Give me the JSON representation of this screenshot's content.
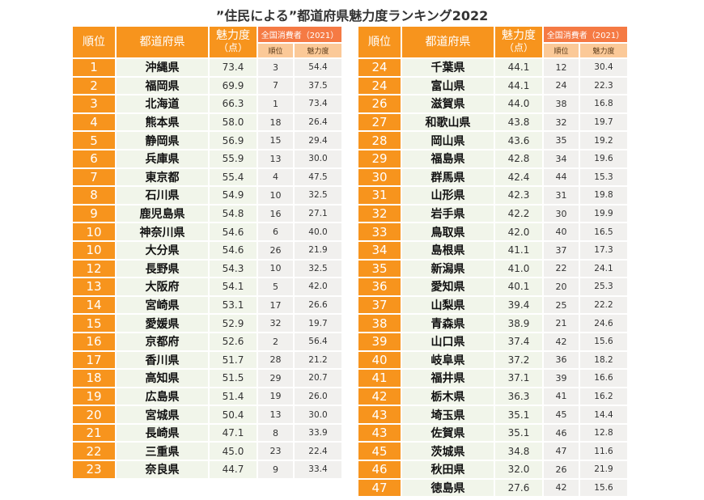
{
  "title": "”住民による”都道府県魅力度ランキング2022",
  "headers": {
    "rank": "順位",
    "prefecture": "都道府県",
    "score": "魅力度",
    "score_unit": "（点）",
    "group": "全国消費者（2021）",
    "sub_rank": "順位",
    "sub_score": "魅力度"
  },
  "colors": {
    "rank_bg": "#f7941d",
    "group_header_bg": "#f57a44",
    "sub_header_bg": "#fbc998",
    "row_bg": "#f1f5ea",
    "sub_row_bg": "#f1f0ee"
  },
  "left_rows": [
    {
      "rank": "1",
      "pref": "沖縄県",
      "score": "73.4",
      "r2021": "3",
      "s2021": "54.4"
    },
    {
      "rank": "2",
      "pref": "福岡県",
      "score": "69.9",
      "r2021": "7",
      "s2021": "37.5"
    },
    {
      "rank": "3",
      "pref": "北海道",
      "score": "66.3",
      "r2021": "1",
      "s2021": "73.4"
    },
    {
      "rank": "4",
      "pref": "熊本県",
      "score": "58.0",
      "r2021": "18",
      "s2021": "26.4"
    },
    {
      "rank": "5",
      "pref": "静岡県",
      "score": "56.9",
      "r2021": "15",
      "s2021": "29.4"
    },
    {
      "rank": "6",
      "pref": "兵庫県",
      "score": "55.9",
      "r2021": "13",
      "s2021": "30.0"
    },
    {
      "rank": "7",
      "pref": "東京都",
      "score": "55.4",
      "r2021": "4",
      "s2021": "47.5"
    },
    {
      "rank": "8",
      "pref": "石川県",
      "score": "54.9",
      "r2021": "10",
      "s2021": "32.5"
    },
    {
      "rank": "9",
      "pref": "鹿児島県",
      "score": "54.8",
      "r2021": "16",
      "s2021": "27.1"
    },
    {
      "rank": "10",
      "pref": "神奈川県",
      "score": "54.6",
      "r2021": "6",
      "s2021": "40.0"
    },
    {
      "rank": "10",
      "pref": "大分県",
      "score": "54.6",
      "r2021": "26",
      "s2021": "21.9"
    },
    {
      "rank": "12",
      "pref": "長野県",
      "score": "54.3",
      "r2021": "10",
      "s2021": "32.5"
    },
    {
      "rank": "13",
      "pref": "大阪府",
      "score": "54.1",
      "r2021": "5",
      "s2021": "42.0"
    },
    {
      "rank": "14",
      "pref": "宮崎県",
      "score": "53.1",
      "r2021": "17",
      "s2021": "26.6"
    },
    {
      "rank": "15",
      "pref": "愛媛県",
      "score": "52.9",
      "r2021": "32",
      "s2021": "19.7"
    },
    {
      "rank": "16",
      "pref": "京都府",
      "score": "52.6",
      "r2021": "2",
      "s2021": "56.4"
    },
    {
      "rank": "17",
      "pref": "香川県",
      "score": "51.7",
      "r2021": "28",
      "s2021": "21.2"
    },
    {
      "rank": "18",
      "pref": "高知県",
      "score": "51.5",
      "r2021": "29",
      "s2021": "20.7"
    },
    {
      "rank": "19",
      "pref": "広島県",
      "score": "51.4",
      "r2021": "19",
      "s2021": "26.0"
    },
    {
      "rank": "20",
      "pref": "宮城県",
      "score": "50.4",
      "r2021": "13",
      "s2021": "30.0"
    },
    {
      "rank": "21",
      "pref": "長崎県",
      "score": "47.1",
      "r2021": "8",
      "s2021": "33.9"
    },
    {
      "rank": "22",
      "pref": "三重県",
      "score": "45.0",
      "r2021": "23",
      "s2021": "22.4"
    },
    {
      "rank": "23",
      "pref": "奈良県",
      "score": "44.7",
      "r2021": "9",
      "s2021": "33.4"
    }
  ],
  "right_rows": [
    {
      "rank": "24",
      "pref": "千葉県",
      "score": "44.1",
      "r2021": "12",
      "s2021": "30.4"
    },
    {
      "rank": "24",
      "pref": "富山県",
      "score": "44.1",
      "r2021": "24",
      "s2021": "22.3"
    },
    {
      "rank": "26",
      "pref": "滋賀県",
      "score": "44.0",
      "r2021": "38",
      "s2021": "16.8"
    },
    {
      "rank": "27",
      "pref": "和歌山県",
      "score": "43.8",
      "r2021": "32",
      "s2021": "19.7"
    },
    {
      "rank": "28",
      "pref": "岡山県",
      "score": "43.6",
      "r2021": "35",
      "s2021": "19.2"
    },
    {
      "rank": "29",
      "pref": "福島県",
      "score": "42.8",
      "r2021": "34",
      "s2021": "19.6"
    },
    {
      "rank": "30",
      "pref": "群馬県",
      "score": "42.4",
      "r2021": "44",
      "s2021": "15.3"
    },
    {
      "rank": "31",
      "pref": "山形県",
      "score": "42.3",
      "r2021": "31",
      "s2021": "19.8"
    },
    {
      "rank": "32",
      "pref": "岩手県",
      "score": "42.2",
      "r2021": "30",
      "s2021": "19.9"
    },
    {
      "rank": "33",
      "pref": "鳥取県",
      "score": "42.0",
      "r2021": "40",
      "s2021": "16.5"
    },
    {
      "rank": "34",
      "pref": "島根県",
      "score": "41.1",
      "r2021": "37",
      "s2021": "17.3"
    },
    {
      "rank": "35",
      "pref": "新潟県",
      "score": "41.0",
      "r2021": "22",
      "s2021": "24.1"
    },
    {
      "rank": "36",
      "pref": "愛知県",
      "score": "40.1",
      "r2021": "20",
      "s2021": "25.3"
    },
    {
      "rank": "37",
      "pref": "山梨県",
      "score": "39.4",
      "r2021": "25",
      "s2021": "22.2"
    },
    {
      "rank": "38",
      "pref": "青森県",
      "score": "38.9",
      "r2021": "21",
      "s2021": "24.6"
    },
    {
      "rank": "39",
      "pref": "山口県",
      "score": "37.4",
      "r2021": "42",
      "s2021": "15.6"
    },
    {
      "rank": "40",
      "pref": "岐阜県",
      "score": "37.2",
      "r2021": "36",
      "s2021": "18.2"
    },
    {
      "rank": "41",
      "pref": "福井県",
      "score": "37.1",
      "r2021": "39",
      "s2021": "16.6"
    },
    {
      "rank": "42",
      "pref": "栃木県",
      "score": "36.3",
      "r2021": "41",
      "s2021": "16.2"
    },
    {
      "rank": "43",
      "pref": "埼玉県",
      "score": "35.1",
      "r2021": "45",
      "s2021": "14.4"
    },
    {
      "rank": "43",
      "pref": "佐賀県",
      "score": "35.1",
      "r2021": "46",
      "s2021": "12.8"
    },
    {
      "rank": "45",
      "pref": "茨城県",
      "score": "34.8",
      "r2021": "47",
      "s2021": "11.6"
    },
    {
      "rank": "46",
      "pref": "秋田県",
      "score": "32.0",
      "r2021": "26",
      "s2021": "21.9"
    },
    {
      "rank": "47",
      "pref": "徳島県",
      "score": "27.6",
      "r2021": "42",
      "s2021": "15.6"
    }
  ]
}
